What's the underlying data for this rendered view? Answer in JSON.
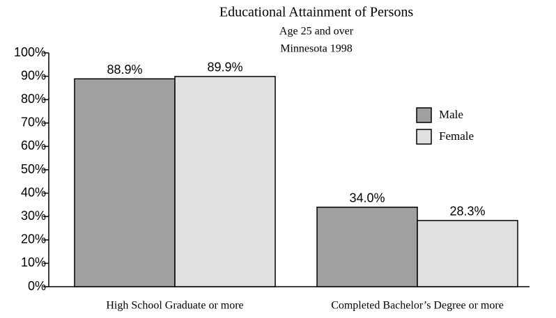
{
  "chart_data": {
    "type": "bar",
    "title": "Educational Attainment of Persons",
    "subtitle": [
      "Age 25 and over",
      "Minnesota 1998"
    ],
    "categories": [
      "High School Graduate or more",
      "Completed Bachelor’s Degree or more"
    ],
    "series": [
      {
        "name": "Male",
        "color": "#a0a0a0",
        "values": [
          88.9,
          34.0
        ],
        "value_labels": [
          "88.9%",
          "34.0%"
        ]
      },
      {
        "name": "Female",
        "color": "#e0e0e0",
        "values": [
          89.9,
          28.3
        ],
        "value_labels": [
          "89.9%",
          "28.3%"
        ]
      }
    ],
    "ylim": [
      0,
      100
    ],
    "yticks": [
      {
        "value": 0,
        "label": "0%"
      },
      {
        "value": 10,
        "label": "10%"
      },
      {
        "value": 20,
        "label": "20%"
      },
      {
        "value": 30,
        "label": "30%"
      },
      {
        "value": 40,
        "label": "40%"
      },
      {
        "value": 50,
        "label": "50%"
      },
      {
        "value": 60,
        "label": "60%"
      },
      {
        "value": 70,
        "label": "70%"
      },
      {
        "value": 80,
        "label": "80%"
      },
      {
        "value": 90,
        "label": "90%"
      },
      {
        "value": 100,
        "label": "100%"
      }
    ],
    "legend": "right"
  }
}
